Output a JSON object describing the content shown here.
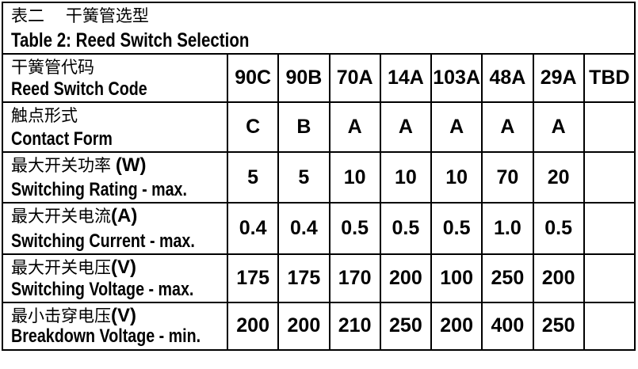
{
  "title": {
    "zh": "表二　 干簧管选型",
    "en": "Table 2: Reed Switch Selection"
  },
  "rows": [
    {
      "label_zh": "干簧管代码",
      "label_unit": "",
      "label_en": "Reed Switch Code",
      "values": [
        "90C",
        "90B",
        "70A",
        "14A",
        "103A",
        "48A",
        "29A",
        "TBD"
      ]
    },
    {
      "label_zh": "触点形式",
      "label_unit": "",
      "label_en": "Contact Form",
      "values": [
        "C",
        "B",
        "A",
        "A",
        "A",
        "A",
        "A",
        ""
      ]
    },
    {
      "label_zh": "最大开关功率 ",
      "label_unit": "(W)",
      "label_en": "Switching Rating - max.",
      "values": [
        "5",
        "5",
        "10",
        "10",
        "10",
        "70",
        "20",
        ""
      ]
    },
    {
      "label_zh": "最大开关电流",
      "label_unit": "(A)",
      "label_en": "Switching Current - max.",
      "values": [
        "0.4",
        "0.4",
        "0.5",
        "0.5",
        "0.5",
        "1.0",
        "0.5",
        ""
      ]
    },
    {
      "label_zh": "最大开关电压",
      "label_unit": "(V)",
      "label_en": "Switching Voltage - max.",
      "values": [
        "175",
        "175",
        "170",
        "200",
        "100",
        "250",
        "200",
        ""
      ]
    },
    {
      "label_zh": "最小击穿电压",
      "label_unit": "(V)",
      "label_en": "Breakdown Voltage - min.",
      "values": [
        "200",
        "200",
        "210",
        "250",
        "200",
        "400",
        "250",
        ""
      ]
    }
  ],
  "colors": {
    "border": "#000000",
    "text": "#000000",
    "background": "#ffffff"
  }
}
